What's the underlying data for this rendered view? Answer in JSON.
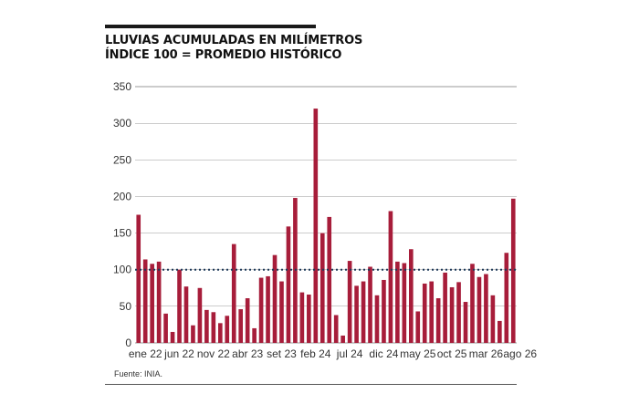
{
  "title_line1": "LLUVIAS ACUMULADAS EN MILÍMETROS",
  "title_line2": "ÍNDICE 100 = PROMEDIO HISTÓRICO",
  "source": "Fuente: INIA.",
  "colors": {
    "bar": "#a71d3a",
    "reference": "#1f3a5a",
    "grid": "#999999"
  },
  "chart_data": {
    "type": "bar",
    "title": "LLUVIAS ACUMULADAS EN MILÍMETROS",
    "subtitle": "ÍNDICE 100 = PROMEDIO HISTÓRICO",
    "xlabel": "",
    "ylabel": "",
    "ylim": [
      0,
      350
    ],
    "yticks": [
      0,
      50,
      100,
      150,
      200,
      250,
      300,
      350
    ],
    "grid": true,
    "reference_line": 100,
    "tick_labels": [
      {
        "index": 1,
        "label": "ene 22"
      },
      {
        "index": 6,
        "label": "jun 22"
      },
      {
        "index": 11,
        "label": "nov 22"
      },
      {
        "index": 16,
        "label": "abr 23"
      },
      {
        "index": 21,
        "label": "set 23"
      },
      {
        "index": 26,
        "label": "feb 24"
      },
      {
        "index": 31,
        "label": "jul 24"
      },
      {
        "index": 36,
        "label": "dic 24"
      },
      {
        "index": 41,
        "label": "may 25"
      },
      {
        "index": 46,
        "label": "oct 25"
      },
      {
        "index": 51,
        "label": "mar 26"
      },
      {
        "index": 56,
        "label": "ago 26"
      }
    ],
    "values": [
      175,
      114,
      108,
      111,
      40,
      15,
      100,
      77,
      24,
      75,
      45,
      42,
      27,
      37,
      135,
      46,
      61,
      20,
      89,
      91,
      120,
      84,
      159,
      198,
      69,
      66,
      320,
      150,
      172,
      38,
      10,
      112,
      78,
      84,
      104,
      65,
      86,
      180,
      111,
      109,
      128,
      43,
      81,
      84,
      61,
      96,
      76,
      83,
      56,
      108,
      90,
      94,
      65,
      30,
      123,
      197
    ]
  }
}
